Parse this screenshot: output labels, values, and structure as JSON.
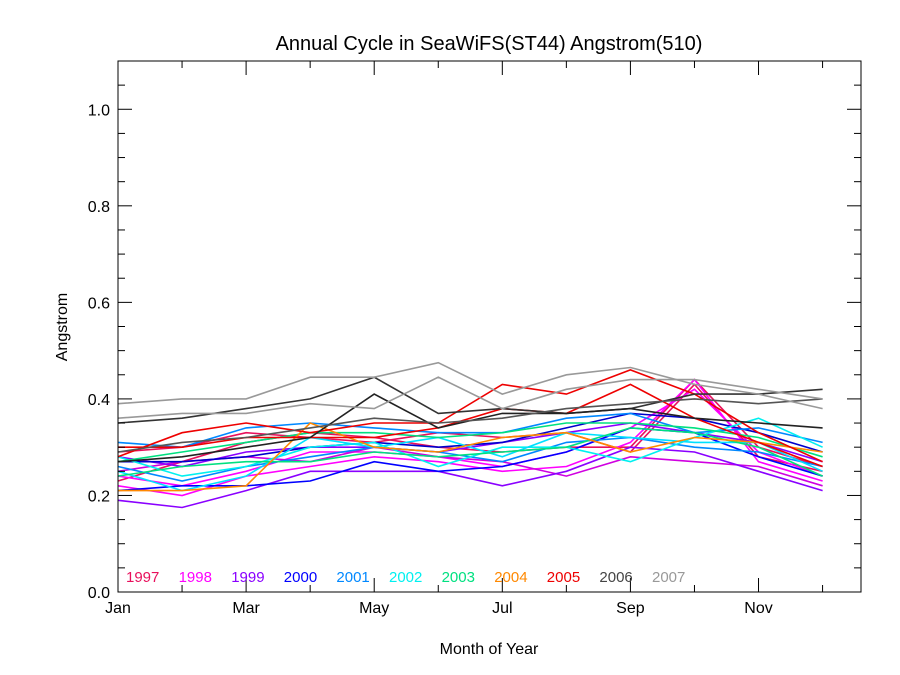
{
  "chart_data": {
    "type": "line",
    "title": "Annual Cycle in SeaWiFS(ST44) Angstrom(510)",
    "xlabel": "Month of Year",
    "ylabel": "Angstrom",
    "xlim": [
      1,
      12.6
    ],
    "ylim": [
      0.0,
      1.1
    ],
    "x_ticks": [
      {
        "value": 1,
        "label": "Jan"
      },
      {
        "value": 3,
        "label": "Mar"
      },
      {
        "value": 5,
        "label": "May"
      },
      {
        "value": 7,
        "label": "Jul"
      },
      {
        "value": 9,
        "label": "Sep"
      },
      {
        "value": 11,
        "label": "Nov"
      }
    ],
    "y_ticks": [
      {
        "value": 0.0,
        "label": "0.0"
      },
      {
        "value": 0.2,
        "label": "0.2"
      },
      {
        "value": 0.4,
        "label": "0.4"
      },
      {
        "value": 0.6,
        "label": "0.6"
      },
      {
        "value": 0.8,
        "label": "0.8"
      },
      {
        "value": 1.0,
        "label": "1.0"
      }
    ],
    "legend_position": "bottom-left, inside plot",
    "grid": false,
    "x": [
      1,
      2,
      3,
      4,
      5,
      6,
      7,
      8,
      9,
      10,
      11,
      12
    ],
    "series": [
      {
        "name": "1997",
        "color": "#e8105c",
        "values": [
          0.23,
          0.27,
          0.31,
          0.33,
          0.32,
          0.3,
          0.29,
          0.3,
          0.3,
          0.44,
          0.3,
          0.26
        ]
      },
      {
        "name": "1997",
        "color": "#e8105c",
        "values": [
          0.29,
          0.3,
          0.33,
          0.32,
          0.31,
          0.33,
          0.32,
          0.33,
          0.29,
          0.43,
          0.28,
          0.25
        ]
      },
      {
        "name": "1998",
        "color": "#ff00ff",
        "values": [
          0.22,
          0.2,
          0.24,
          0.26,
          0.28,
          0.27,
          0.25,
          0.26,
          0.31,
          0.44,
          0.27,
          0.23
        ]
      },
      {
        "name": "1998",
        "color": "#ff00ff",
        "values": [
          0.24,
          0.22,
          0.25,
          0.29,
          0.29,
          0.28,
          0.26,
          0.29,
          0.34,
          0.42,
          0.29,
          0.24
        ]
      },
      {
        "name": "1998",
        "color": "#d000e0",
        "values": [
          0.25,
          0.27,
          0.28,
          0.27,
          0.3,
          0.28,
          0.27,
          0.24,
          0.28,
          0.27,
          0.26,
          0.22
        ]
      },
      {
        "name": "1999",
        "color": "#8a00ff",
        "values": [
          0.19,
          0.175,
          0.21,
          0.25,
          0.25,
          0.25,
          0.22,
          0.25,
          0.3,
          0.29,
          0.25,
          0.21
        ]
      },
      {
        "name": "1999",
        "color": "#8a00ff",
        "values": [
          0.28,
          0.26,
          0.29,
          0.3,
          0.3,
          0.29,
          0.31,
          0.33,
          0.35,
          0.33,
          0.31,
          0.27
        ]
      },
      {
        "name": "2000",
        "color": "#0000ff",
        "values": [
          0.21,
          0.22,
          0.22,
          0.23,
          0.27,
          0.25,
          0.26,
          0.29,
          0.34,
          0.33,
          0.28,
          0.24
        ]
      },
      {
        "name": "2000",
        "color": "#0000cc",
        "values": [
          0.27,
          0.27,
          0.28,
          0.3,
          0.31,
          0.3,
          0.31,
          0.34,
          0.37,
          0.36,
          0.33,
          0.29
        ]
      },
      {
        "name": "2001",
        "color": "#0088ff",
        "values": [
          0.31,
          0.3,
          0.34,
          0.35,
          0.34,
          0.33,
          0.33,
          0.36,
          0.37,
          0.33,
          0.34,
          0.31
        ]
      },
      {
        "name": "2001",
        "color": "#0088ff",
        "values": [
          0.26,
          0.23,
          0.26,
          0.28,
          0.3,
          0.29,
          0.27,
          0.31,
          0.32,
          0.3,
          0.29,
          0.26
        ]
      },
      {
        "name": "2002",
        "color": "#00f0f0",
        "values": [
          0.28,
          0.24,
          0.26,
          0.3,
          0.31,
          0.26,
          0.3,
          0.3,
          0.27,
          0.32,
          0.36,
          0.3
        ]
      },
      {
        "name": "2002",
        "color": "#00e0ff",
        "values": [
          0.25,
          0.21,
          0.24,
          0.32,
          0.3,
          0.32,
          0.28,
          0.33,
          0.32,
          0.31,
          0.31,
          0.25
        ]
      },
      {
        "name": "2003",
        "color": "#00e080",
        "values": [
          0.24,
          0.26,
          0.27,
          0.27,
          0.29,
          0.28,
          0.29,
          0.3,
          0.34,
          0.33,
          0.3,
          0.24
        ]
      },
      {
        "name": "2003",
        "color": "#00e080",
        "values": [
          0.27,
          0.29,
          0.31,
          0.33,
          0.33,
          0.32,
          0.33,
          0.35,
          0.35,
          0.34,
          0.32,
          0.28
        ]
      },
      {
        "name": "2004",
        "color": "#ff8800",
        "values": [
          0.21,
          0.21,
          0.22,
          0.35,
          0.3,
          0.29,
          0.32,
          0.33,
          0.29,
          0.32,
          0.31,
          0.29
        ]
      },
      {
        "name": "2005",
        "color": "#ee0000",
        "values": [
          0.28,
          0.33,
          0.35,
          0.33,
          0.35,
          0.35,
          0.43,
          0.41,
          0.46,
          0.41,
          0.33,
          0.27
        ]
      },
      {
        "name": "2005",
        "color": "#ee0000",
        "values": [
          0.3,
          0.3,
          0.32,
          0.32,
          0.32,
          0.34,
          0.38,
          0.37,
          0.43,
          0.36,
          0.31,
          0.26
        ]
      },
      {
        "name": "2006",
        "color": "#333333",
        "values": [
          0.35,
          0.36,
          0.38,
          0.4,
          0.445,
          0.37,
          0.38,
          0.37,
          0.38,
          0.41,
          0.41,
          0.42
        ]
      },
      {
        "name": "2006",
        "color": "#222222",
        "values": [
          0.27,
          0.28,
          0.3,
          0.32,
          0.41,
          0.34,
          0.37,
          0.37,
          0.38,
          0.36,
          0.35,
          0.34
        ]
      },
      {
        "name": "2006",
        "color": "#555555",
        "values": [
          0.29,
          0.31,
          0.32,
          0.34,
          0.36,
          0.35,
          0.36,
          0.38,
          0.39,
          0.4,
          0.39,
          0.4
        ]
      },
      {
        "name": "2007",
        "color": "#999999",
        "values": [
          0.39,
          0.4,
          0.4,
          0.445,
          0.445,
          0.475,
          0.41,
          0.45,
          0.465,
          0.43,
          0.41,
          0.38
        ]
      },
      {
        "name": "2007",
        "color": "#999999",
        "values": [
          0.36,
          0.37,
          0.37,
          0.39,
          0.38,
          0.445,
          0.38,
          0.42,
          0.44,
          0.44,
          0.42,
          0.4
        ]
      }
    ],
    "legend": [
      {
        "label": "1997",
        "color": "#e8105c"
      },
      {
        "label": "1998",
        "color": "#ff00ff"
      },
      {
        "label": "1999",
        "color": "#8a00ff"
      },
      {
        "label": "2000",
        "color": "#0000ff"
      },
      {
        "label": "2001",
        "color": "#0088ff"
      },
      {
        "label": "2002",
        "color": "#00f0f0"
      },
      {
        "label": "2003",
        "color": "#00e080"
      },
      {
        "label": "2004",
        "color": "#ff8800"
      },
      {
        "label": "2005",
        "color": "#ee0000"
      },
      {
        "label": "2006",
        "color": "#444444"
      },
      {
        "label": "2007",
        "color": "#999999"
      }
    ]
  }
}
